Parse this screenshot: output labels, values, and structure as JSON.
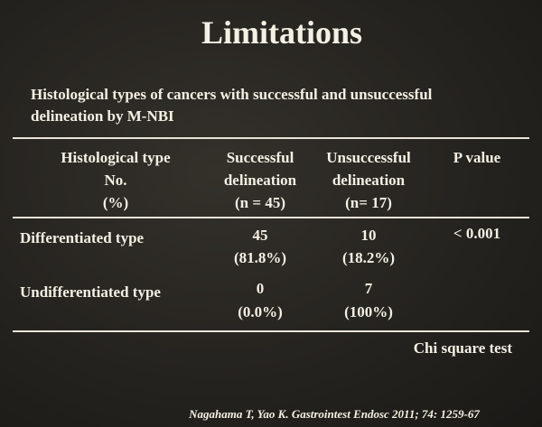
{
  "title": "Limitations",
  "subtitle": [
    "Histological types of cancers with successful and unsuccessful",
    "delineation by M-NBI"
  ],
  "table": {
    "header": [
      [
        "Histological type",
        "No.",
        "(%)"
      ],
      [
        "Successful",
        "delineation",
        "(n = 45)"
      ],
      [
        "Unsuccessful",
        "delineation",
        "(n= 17)"
      ],
      [
        "P value"
      ]
    ],
    "rows": [
      {
        "label": "Differentiated type",
        "successful": {
          "n": "45",
          "percent": "(81.8%)"
        },
        "unsuccessful": {
          "n": "10",
          "percent": "(18.2%)"
        },
        "p_value": "< 0.001"
      },
      {
        "label": "Undifferentiated type",
        "successful": {
          "n": "0",
          "percent": "(0.0%)"
        },
        "unsuccessful": {
          "n": "7",
          "percent": "(100%)"
        }
      }
    ]
  },
  "note": "Chi square test",
  "citation": "Nagahama T, Yao K. Gastrointest Endosc 2011; 74: 1259-67"
}
